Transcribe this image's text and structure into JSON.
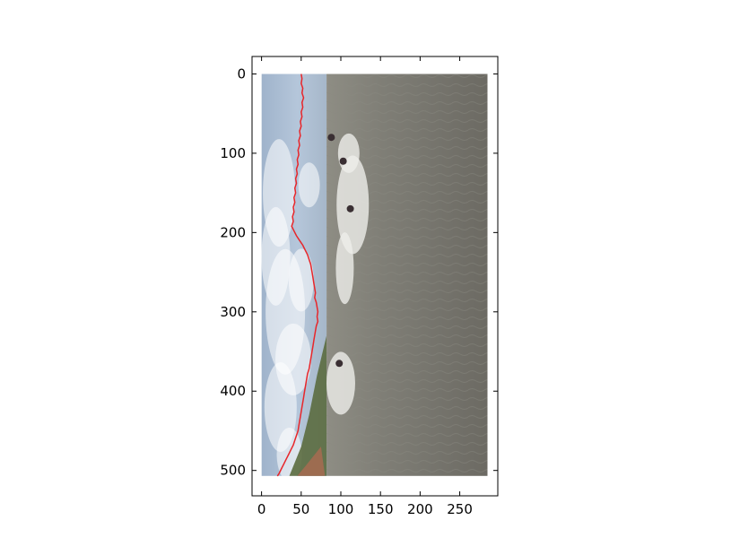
{
  "chart_data": {
    "type": "image",
    "title": "",
    "xlabel": "",
    "ylabel": "",
    "xlim": [
      -12,
      298
    ],
    "ylim": [
      532,
      -22
    ],
    "image_extent": {
      "x": [
        0,
        285
      ],
      "y": [
        0,
        507
      ]
    },
    "xticks": [
      0,
      50,
      100,
      150,
      200,
      250
    ],
    "yticks": [
      0,
      100,
      200,
      300,
      400,
      500
    ],
    "xtick_labels": [
      "0",
      "50",
      "100",
      "150",
      "200",
      "250"
    ],
    "ytick_labels": [
      "0",
      "100",
      "200",
      "300",
      "400",
      "500"
    ],
    "grid": false,
    "line_color": "#e8262a",
    "series": [
      {
        "type": "line",
        "points": [
          [
            50,
            0
          ],
          [
            51,
            6
          ],
          [
            50,
            12
          ],
          [
            52,
            18
          ],
          [
            51,
            24
          ],
          [
            53,
            30
          ],
          [
            51,
            36
          ],
          [
            52,
            42
          ],
          [
            50,
            48
          ],
          [
            51,
            54
          ],
          [
            49,
            60
          ],
          [
            50,
            66
          ],
          [
            48,
            72
          ],
          [
            49,
            78
          ],
          [
            47,
            84
          ],
          [
            48,
            90
          ],
          [
            46,
            96
          ],
          [
            47,
            102
          ],
          [
            45,
            108
          ],
          [
            46,
            114
          ],
          [
            44,
            120
          ],
          [
            45,
            126
          ],
          [
            43,
            132
          ],
          [
            44,
            138
          ],
          [
            42,
            144
          ],
          [
            43,
            150
          ],
          [
            41,
            156
          ],
          [
            42,
            162
          ],
          [
            40,
            168
          ],
          [
            41,
            174
          ],
          [
            39,
            180
          ],
          [
            40,
            186
          ],
          [
            38,
            192
          ],
          [
            41,
            198
          ],
          [
            44,
            204
          ],
          [
            48,
            210
          ],
          [
            52,
            216
          ],
          [
            55,
            222
          ],
          [
            58,
            228
          ],
          [
            60,
            234
          ],
          [
            62,
            240
          ],
          [
            63,
            246
          ],
          [
            64,
            252
          ],
          [
            65,
            258
          ],
          [
            66,
            264
          ],
          [
            67,
            270
          ],
          [
            68,
            276
          ],
          [
            67,
            282
          ],
          [
            69,
            288
          ],
          [
            70,
            294
          ],
          [
            71,
            300
          ],
          [
            70,
            306
          ],
          [
            71,
            312
          ],
          [
            69,
            318
          ],
          [
            68,
            324
          ],
          [
            67,
            330
          ],
          [
            66,
            336
          ],
          [
            65,
            342
          ],
          [
            64,
            348
          ],
          [
            63,
            354
          ],
          [
            62,
            360
          ],
          [
            61,
            366
          ],
          [
            60,
            372
          ],
          [
            58,
            378
          ],
          [
            57,
            384
          ],
          [
            56,
            390
          ],
          [
            55,
            396
          ],
          [
            54,
            402
          ],
          [
            53,
            408
          ],
          [
            52,
            414
          ],
          [
            51,
            420
          ],
          [
            50,
            426
          ],
          [
            49,
            432
          ],
          [
            48,
            438
          ],
          [
            47,
            444
          ],
          [
            46,
            450
          ],
          [
            44,
            456
          ],
          [
            42,
            462
          ],
          [
            40,
            468
          ],
          [
            37,
            474
          ],
          [
            34,
            480
          ],
          [
            31,
            486
          ],
          [
            28,
            492
          ],
          [
            25,
            498
          ],
          [
            22,
            504
          ],
          [
            20,
            507
          ]
        ]
      }
    ]
  }
}
